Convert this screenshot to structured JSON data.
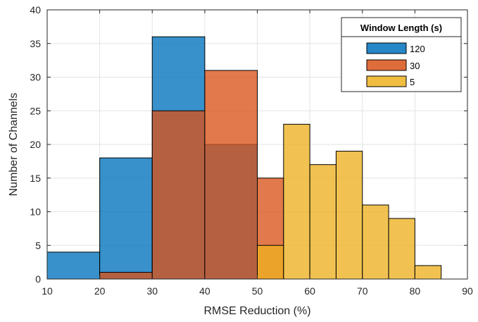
{
  "chart_data": {
    "type": "bar",
    "chart_style": "overlapping histogram",
    "xlabel": "RMSE Reduction (%)",
    "ylabel": "Number of Channels",
    "xlim": [
      10,
      90
    ],
    "ylim": [
      0,
      40
    ],
    "xticks": [
      10,
      20,
      30,
      40,
      50,
      60,
      70,
      80,
      90
    ],
    "yticks": [
      0,
      5,
      10,
      15,
      20,
      25,
      30,
      35,
      40
    ],
    "grid": true,
    "legend": {
      "title": "Window Length (s)",
      "placement": "top-right",
      "entries": [
        "120",
        "30",
        "5"
      ]
    },
    "series": [
      {
        "name": "120",
        "color": "#0072bd",
        "bin_edges": [
          10,
          20,
          30,
          40,
          50
        ],
        "values": [
          4,
          18,
          36,
          20
        ]
      },
      {
        "name": "30",
        "color": "#d95319",
        "bin_edges": [
          20,
          30,
          40,
          50,
          55
        ],
        "values": [
          1,
          25,
          31,
          15
        ]
      },
      {
        "name": "5",
        "color": "#edb120",
        "bin_edges": [
          50,
          55,
          60,
          65,
          70,
          75,
          80,
          85
        ],
        "values": [
          5,
          23,
          17,
          19,
          11,
          9,
          2
        ]
      }
    ]
  }
}
